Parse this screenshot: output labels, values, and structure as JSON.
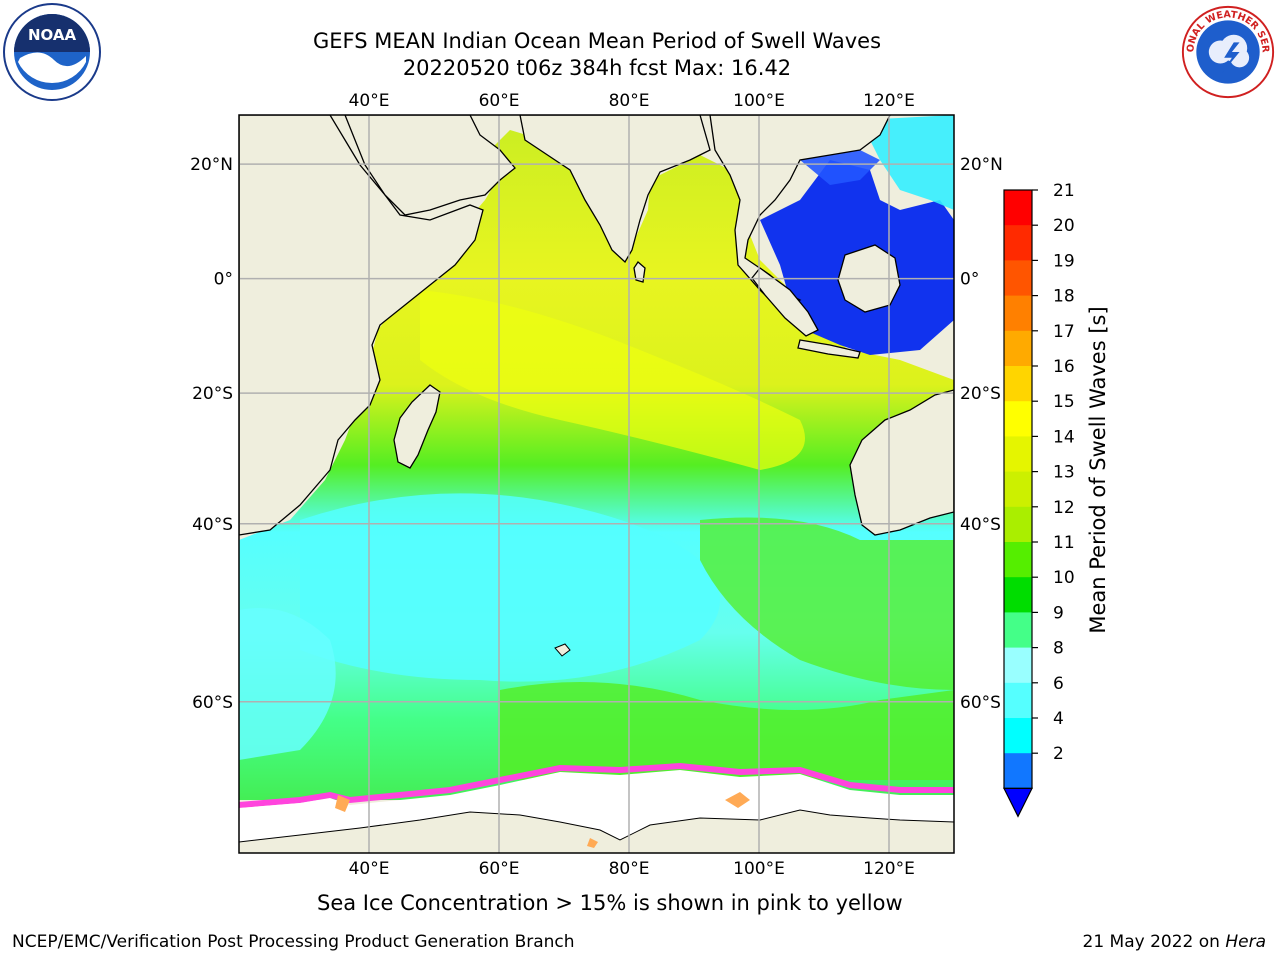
{
  "title": {
    "line1": "GEFS MEAN Indian Ocean Mean Period of Swell Waves",
    "line2": "20220520 t06z 384h fcst   Max: 16.42"
  },
  "map": {
    "lon_labels": [
      "40°E",
      "60°E",
      "80°E",
      "100°E",
      "120°E"
    ],
    "lon_values": [
      40,
      60,
      80,
      100,
      120
    ],
    "lat_labels": [
      "20°N",
      "0°",
      "20°S",
      "40°S",
      "60°S"
    ],
    "lat_values": [
      20,
      0,
      -20,
      -40,
      -60
    ],
    "colors": {
      "land": "#efeedd",
      "ice_free_zone": "#ffffff",
      "ice_edge": "#ff44dd",
      "ice_inner": "#ffaa55",
      "gridline": "#b0b0b0",
      "coast": "#000000"
    }
  },
  "colorbar": {
    "label": "Mean Period of Swell Waves [s]",
    "ticks": [
      "21",
      "20",
      "19",
      "18",
      "17",
      "16",
      "15",
      "14",
      "13",
      "12",
      "11",
      "10",
      "9",
      "8",
      "6",
      "4",
      "2"
    ],
    "colors": [
      "#ff0000",
      "#ff2a00",
      "#ff5500",
      "#ff8000",
      "#ffaa00",
      "#ffd500",
      "#ffff00",
      "#e5f500",
      "#ccf000",
      "#aaee00",
      "#55ee00",
      "#00dd00",
      "#44ff88",
      "#99ffff",
      "#55ffff",
      "#00ffff",
      "#1177ff",
      "#0000ff"
    ]
  },
  "footnote": "Sea Ice Concentration > 15% is shown in pink to yellow",
  "credits": "NCEP/EMC/Verification Post Processing Product Generation Branch",
  "date_text": "21 May 2022 on",
  "machine": "Hera",
  "logos": {
    "left_icon": "noaa-logo-icon",
    "left_text": "NOAA",
    "right_icon": "nws-logo-icon",
    "right_text": "NATIONAL WEATHER SERVICE"
  }
}
